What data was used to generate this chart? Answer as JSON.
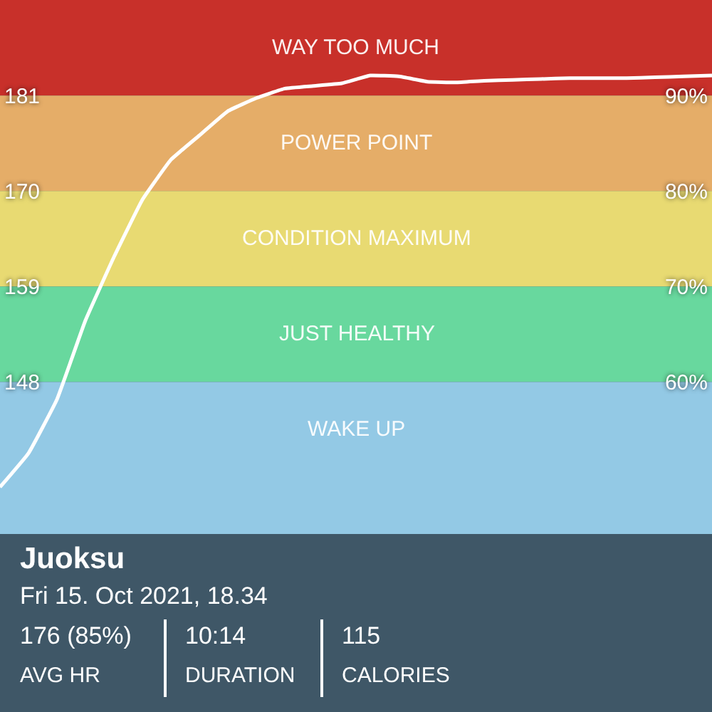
{
  "chart_data": {
    "type": "line",
    "title": "Juoksu",
    "subtitle": "Fri 15. Oct 2021, 18.34",
    "categories": [
      null,
      null,
      null,
      null,
      null,
      null,
      null,
      null,
      null,
      null,
      null,
      null,
      null,
      null,
      null,
      null,
      null,
      null,
      null,
      null,
      null,
      null,
      null,
      null,
      null,
      null
    ],
    "series": [
      {
        "color": "#ffffff",
        "values": [
          135.9,
          139.8,
          146,
          155.1,
          162.4,
          169,
          173.6,
          176.4,
          179.2,
          180.7,
          181.8,
          182.1,
          182.4,
          183.3,
          183.2,
          182.6,
          182.5,
          182.7,
          182.8,
          182.9,
          183,
          183,
          183,
          183.1,
          183.2,
          183.3
        ]
      }
    ],
    "ylim": [
      110,
      192
    ],
    "yticks": [
      148,
      159,
      170,
      181
    ],
    "y2lim": [
      25.4,
      100
    ],
    "y2ticks": [
      {
        "value": 60,
        "label": "60%"
      },
      {
        "value": 70,
        "label": "70%"
      },
      {
        "value": 80,
        "label": "80%"
      },
      {
        "value": 90,
        "label": "90%"
      }
    ],
    "bands": [
      {
        "axis": "y",
        "from": 181,
        "to": 192,
        "label": "WAY TOO MUCH",
        "color": "#c8302a"
      },
      {
        "axis": "y",
        "from": 170,
        "to": 181,
        "label": "POWER POINT",
        "color": "#e5ad68"
      },
      {
        "axis": "y",
        "from": 159,
        "to": 170,
        "label": "CONDITION MAXIMUM",
        "color": "#e8da72"
      },
      {
        "axis": "y",
        "from": 148,
        "to": 159,
        "label": "JUST HEALTHY",
        "color": "#68d89e"
      },
      {
        "axis": "y",
        "from": 110,
        "to": 148,
        "label": "WAKE UP",
        "color": "#93c9e5"
      }
    ],
    "annotations": [
      "176 (85%)",
      "AVG HR",
      "10:14",
      "DURATION",
      "115",
      "CALORIES"
    ],
    "legend": false,
    "grid": false,
    "marker": "none",
    "line_style": "solid"
  }
}
